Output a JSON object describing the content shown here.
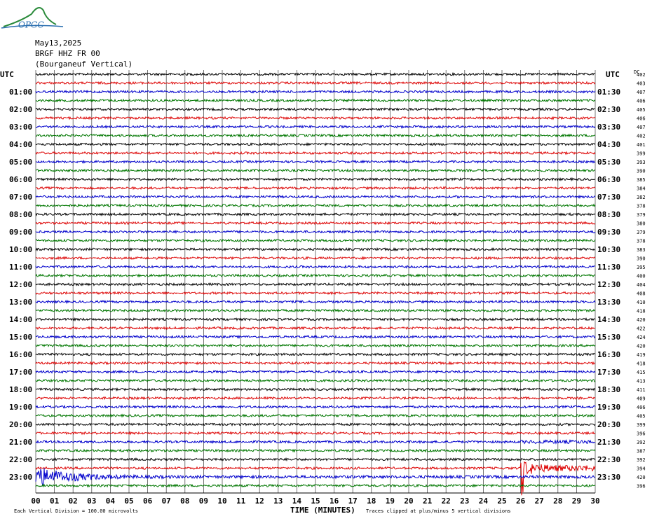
{
  "logo": "OPGC",
  "header": {
    "date": "May13,2025",
    "station": "BRGF HHZ FR 00",
    "name": "(Bourganeuf Vertical)"
  },
  "left_axis": {
    "title": "UTC",
    "labels": [
      "01:00",
      "02:00",
      "03:00",
      "04:00",
      "05:00",
      "06:00",
      "07:00",
      "08:00",
      "09:00",
      "10:00",
      "11:00",
      "12:00",
      "13:00",
      "14:00",
      "15:00",
      "16:00",
      "17:00",
      "18:00",
      "19:00",
      "20:00",
      "21:00",
      "22:00",
      "23:00"
    ]
  },
  "right_axis": {
    "title": "UTC",
    "labels": [
      "01:30",
      "02:30",
      "03:30",
      "04:30",
      "05:30",
      "06:30",
      "07:30",
      "08:30",
      "09:30",
      "10:30",
      "11:30",
      "12:30",
      "13:30",
      "14:30",
      "15:30",
      "16:30",
      "17:30",
      "18:30",
      "19:30",
      "20:30",
      "21:30",
      "22:30",
      "23:30"
    ]
  },
  "dc": {
    "title": "DC",
    "values": [
      "402",
      "403",
      "407",
      "406",
      "405",
      "406",
      "407",
      "402",
      "401",
      "399",
      "393",
      "390",
      "385",
      "384",
      "382",
      "378",
      "379",
      "380",
      "379",
      "378",
      "383",
      "390",
      "395",
      "400",
      "404",
      "408",
      "410",
      "418",
      "420",
      "422",
      "424",
      "420",
      "419",
      "418",
      "415",
      "413",
      "411",
      "409",
      "406",
      "405",
      "399",
      "396",
      "392",
      "387",
      "392",
      "394",
      "420",
      "396"
    ]
  },
  "x_axis": {
    "title": "TIME (MINUTES)",
    "ticks": [
      "00",
      "01",
      "02",
      "03",
      "04",
      "05",
      "06",
      "07",
      "08",
      "09",
      "10",
      "11",
      "12",
      "13",
      "14",
      "15",
      "16",
      "17",
      "18",
      "19",
      "20",
      "21",
      "22",
      "23",
      "24",
      "25",
      "26",
      "27",
      "28",
      "29",
      "30"
    ]
  },
  "footer": {
    "scale": "Each Vertical Division =  100.00 microvolts",
    "clip": "Traces clipped at plus/minus 5 vertical divisions"
  }
}
